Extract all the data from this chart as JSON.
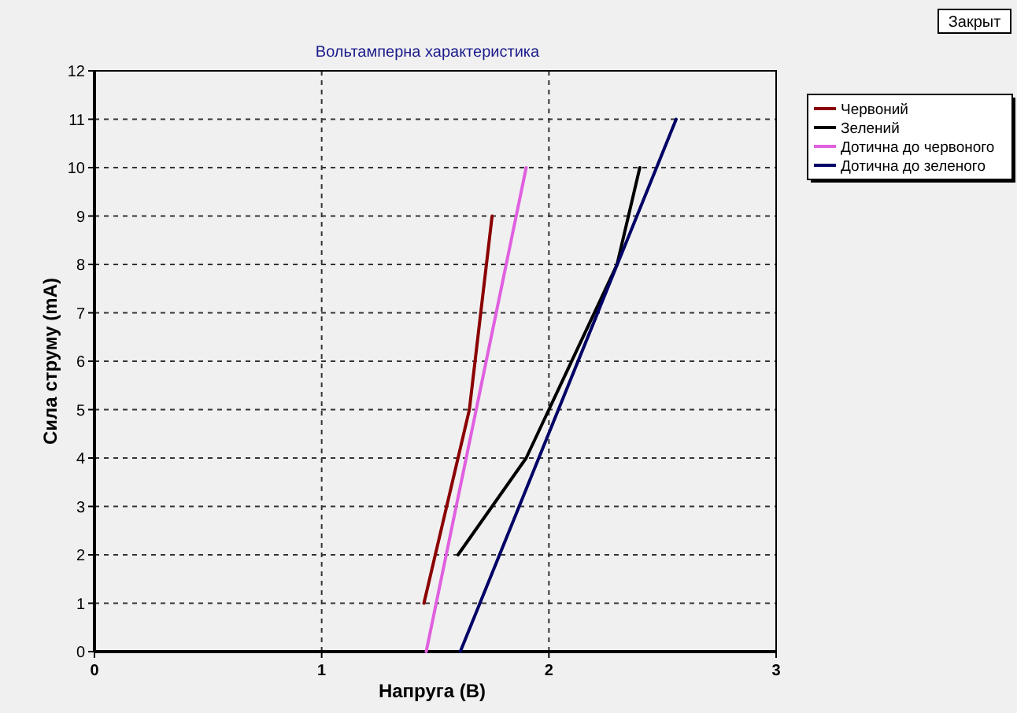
{
  "chart_data": {
    "type": "line",
    "title": "Вольтамперна характеристика",
    "xlabel": "Напруга (В)",
    "ylabel": "Сила струму (mA)",
    "xlim": [
      0,
      3
    ],
    "ylim": [
      0,
      12
    ],
    "xticks": [
      0,
      1,
      2,
      3
    ],
    "yticks": [
      0,
      1,
      2,
      3,
      4,
      5,
      6,
      7,
      8,
      9,
      10,
      11,
      12
    ],
    "grid": true,
    "legend": "top right",
    "marker": "none",
    "line_style": "solid",
    "annotations": [
      "Закрыт"
    ],
    "series": [
      {
        "name": "Червоний",
        "color": "#8b0000",
        "x": [
          1.45,
          1.65,
          1.75
        ],
        "values": [
          1,
          5,
          9
        ]
      },
      {
        "name": "Зелений",
        "color": "#000000",
        "x": [
          1.6,
          1.9,
          2.0,
          2.3,
          2.4
        ],
        "values": [
          2,
          4,
          5,
          8,
          10
        ]
      },
      {
        "name": "Дотична до червоного",
        "color": "#e060e0",
        "x": [
          1.46,
          1.9
        ],
        "values": [
          0,
          10
        ]
      },
      {
        "name": "Дотична до зеленого",
        "color": "#000066",
        "x": [
          1.61,
          2.56
        ],
        "values": [
          0,
          11
        ]
      }
    ]
  }
}
